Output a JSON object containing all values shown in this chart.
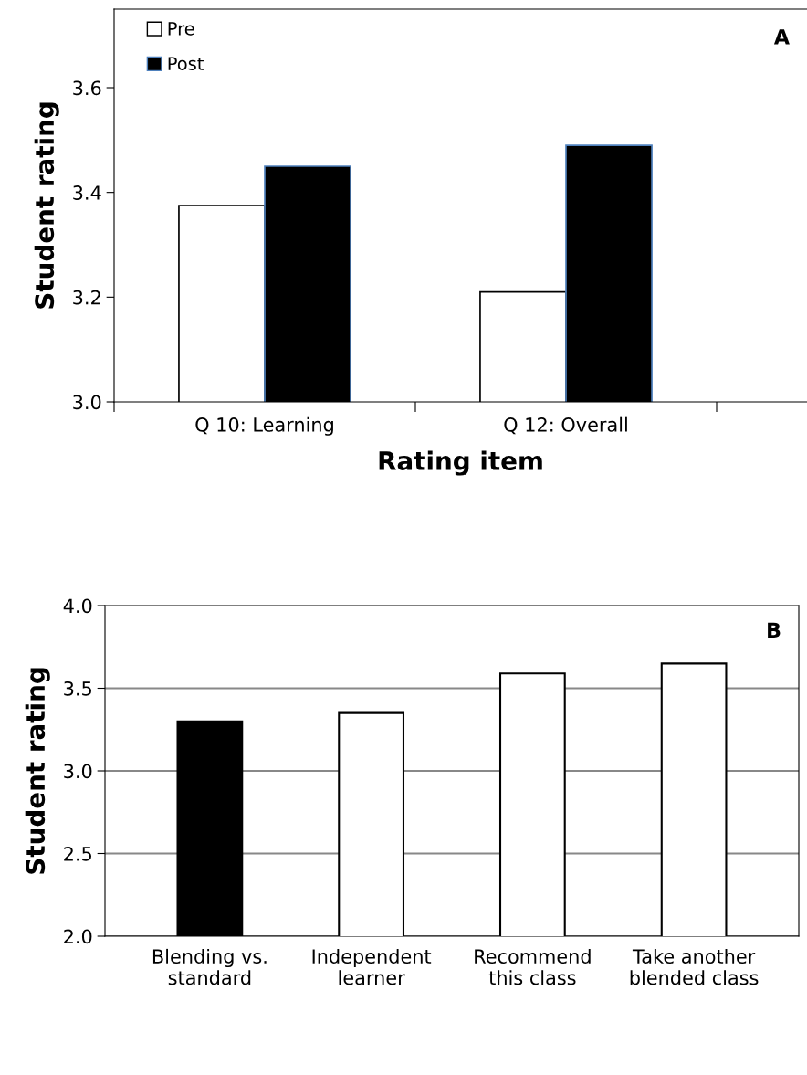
{
  "chart_data": [
    {
      "type": "bar",
      "categories": [
        "Q 10: Learning",
        "Q 12: Overall"
      ],
      "xlabel": "Rating item",
      "ylabel": "Student rating",
      "annotations": [
        "A"
      ],
      "series": [
        {
          "name": "Pre",
          "color": "#ffffff",
          "values": [
            3.375,
            3.21
          ]
        },
        {
          "name": "Post",
          "color": "#000000",
          "values": [
            3.45,
            3.49
          ]
        }
      ],
      "ylim": [
        3.0,
        3.75
      ],
      "yticks": [
        {
          "value": 3.0,
          "label": "3.0"
        },
        {
          "value": 3.2,
          "label": "3.2"
        },
        {
          "value": 3.4,
          "label": "3.4"
        },
        {
          "value": 3.6,
          "label": "3.6"
        }
      ],
      "grid": false,
      "legend": "top left"
    },
    {
      "type": "bar",
      "categories": [
        "Blending vs.\nstandard",
        "Independent\nlearner",
        "Recommend\nthis class",
        "Take another\nblended class"
      ],
      "ylabel": "Student rating",
      "annotations": [
        "B"
      ],
      "values": [
        3.3,
        3.35,
        3.59,
        3.65
      ],
      "colors": [
        "#000000",
        "#ffffff",
        "#ffffff",
        "#ffffff"
      ],
      "ylim": [
        2.0,
        4.0
      ],
      "yticks": [
        {
          "value": 2.0,
          "label": "2.0"
        },
        {
          "value": 2.5,
          "label": "2.5"
        },
        {
          "value": 3.0,
          "label": "3.0"
        },
        {
          "value": 3.5,
          "label": "3.5"
        },
        {
          "value": 4.0,
          "label": "4.0"
        }
      ],
      "grid": "y"
    }
  ]
}
